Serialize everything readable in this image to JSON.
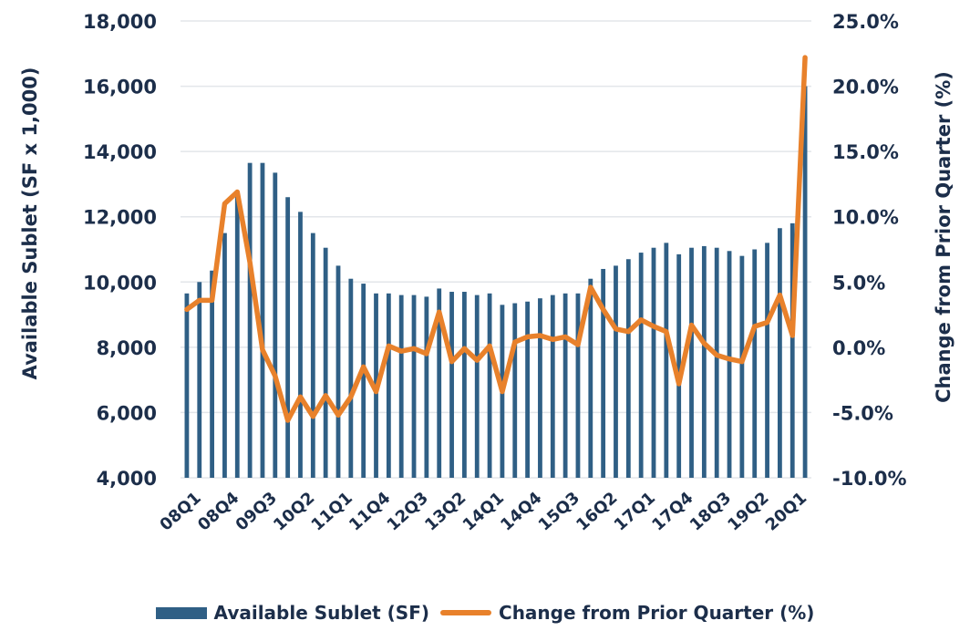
{
  "chart_data": {
    "type": "bar",
    "title": "",
    "ylabel": "Available Sublet (SF x 1,000)",
    "y2label": "Change from Prior Quarter (%)",
    "ylim": [
      4000,
      18000
    ],
    "y2lim": [
      -10.0,
      25.0
    ],
    "yticks": [
      "4,000",
      "6,000",
      "8,000",
      "10,000",
      "12,000",
      "14,000",
      "16,000",
      "18,000"
    ],
    "y2ticks": [
      "-10.0%",
      "-5.0%",
      "0.0%",
      "5.0%",
      "10.0%",
      "15.0%",
      "20.0%",
      "25.0%"
    ],
    "xtick_labels": [
      "08Q1",
      "08Q4",
      "09Q3",
      "10Q2",
      "11Q1",
      "11Q4",
      "12Q3",
      "13Q2",
      "14Q1",
      "14Q4",
      "15Q3",
      "16Q2",
      "17Q1",
      "17Q4",
      "18Q3",
      "19Q2",
      "20Q1"
    ],
    "categories": [
      "08Q1",
      "08Q2",
      "08Q3",
      "08Q4",
      "09Q1",
      "09Q2",
      "09Q3",
      "09Q4",
      "10Q1",
      "10Q2",
      "10Q3",
      "10Q4",
      "11Q1",
      "11Q2",
      "11Q3",
      "11Q4",
      "12Q1",
      "12Q2",
      "12Q3",
      "12Q4",
      "13Q1",
      "13Q2",
      "13Q3",
      "13Q4",
      "14Q1",
      "14Q2",
      "14Q3",
      "14Q4",
      "15Q1",
      "15Q2",
      "15Q3",
      "15Q4",
      "16Q1",
      "16Q2",
      "16Q3",
      "16Q4",
      "17Q1",
      "17Q2",
      "17Q3",
      "17Q4",
      "18Q1",
      "18Q2",
      "18Q3",
      "18Q4",
      "19Q1",
      "19Q2",
      "19Q3",
      "19Q4",
      "20Q1",
      "20Q2"
    ],
    "series": [
      {
        "name": "Available Sublet (SF)",
        "type": "bar",
        "axis": "left",
        "color": "#2f5f85",
        "values": [
          9650,
          10000,
          10350,
          11500,
          12750,
          13650,
          13650,
          13350,
          12600,
          12150,
          11500,
          11050,
          10500,
          10100,
          9950,
          9650,
          9650,
          9600,
          9600,
          9550,
          9800,
          9700,
          9700,
          9600,
          9650,
          9300,
          9350,
          9400,
          9500,
          9600,
          9650,
          9650,
          10100,
          10400,
          10500,
          10700,
          10900,
          11050,
          11200,
          10850,
          11050,
          11100,
          11050,
          10950,
          10800,
          11000,
          11200,
          11650,
          11800,
          16000
        ]
      },
      {
        "name": "Change from Prior Quarter (%)",
        "type": "line",
        "axis": "right",
        "color": "#e8812b",
        "values": [
          2.9,
          3.6,
          3.6,
          11.0,
          11.9,
          6.5,
          -0.2,
          -2.2,
          -5.6,
          -3.8,
          -5.3,
          -3.7,
          -5.2,
          -3.8,
          -1.5,
          -3.4,
          0.1,
          -0.3,
          -0.1,
          -0.5,
          2.7,
          -1.1,
          -0.1,
          -1.0,
          0.1,
          -3.4,
          0.4,
          0.8,
          0.9,
          0.6,
          0.8,
          0.2,
          4.6,
          2.9,
          1.4,
          1.2,
          2.1,
          1.6,
          1.2,
          -2.8,
          1.7,
          0.3,
          -0.6,
          -0.9,
          -1.1,
          1.6,
          1.9,
          4.0,
          0.9,
          22.2
        ]
      }
    ],
    "legend": "bottom",
    "grid": true
  }
}
